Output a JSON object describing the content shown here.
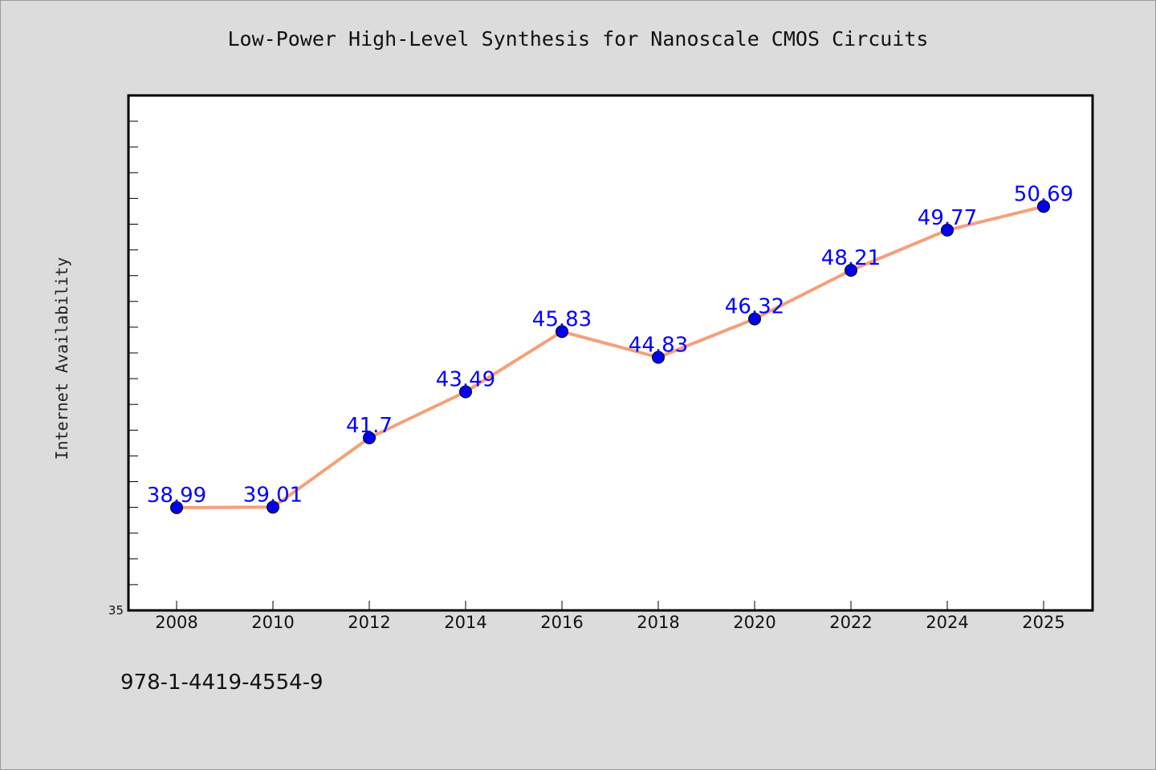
{
  "chart_data": {
    "type": "line",
    "title": "Low-Power High-Level Synthesis for Nanoscale CMOS Circuits",
    "xlabel": "",
    "ylabel": "Internet Availability",
    "categories": [
      "2008",
      "2010",
      "2012",
      "2014",
      "2016",
      "2018",
      "2020",
      "2022",
      "2024",
      "2025"
    ],
    "series": [
      {
        "values": [
          38.99,
          39.01,
          41.7,
          43.49,
          45.83,
          44.83,
          46.32,
          48.21,
          49.77,
          50.69
        ],
        "labels": [
          "38.99",
          "39.01",
          "41.7",
          "43.49",
          "45.83",
          "44.83",
          "46.32",
          "48.21",
          "49.77",
          "50.69"
        ]
      }
    ],
    "ylim": [
      35,
      55
    ],
    "y_tick_labels": [
      "35"
    ],
    "grid": false,
    "legend": "none",
    "colors": {
      "line": "#f4a07a",
      "marker": "#0000ee",
      "data_label": "#0000ff",
      "plot_background": "#ffffff",
      "page_background": "#dcdcdc"
    }
  },
  "footer_text": "978-1-4419-4554-9"
}
